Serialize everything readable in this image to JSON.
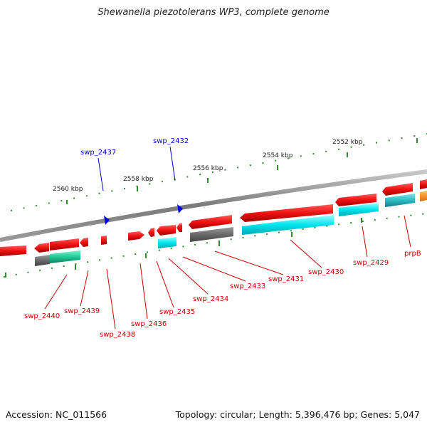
{
  "title": "Shewanella piezotolerans WP3, complete genome",
  "footer": {
    "accession": "Accession: NC_011566",
    "summary": "Topology: circular; Length: 5,396,476 bp; Genes: 5,047"
  },
  "colors": {
    "backbone": "#8a8a8a",
    "tick": "#2e8b2e",
    "forward_gene": "#ee1111",
    "reverse_gene": "#ee1111",
    "label_red": "#cc0000",
    "label_blue": "#0000cc",
    "cds_cyan": "#00e5ee",
    "cds_grey": "#707070",
    "cds_teal": "#20c997",
    "orange": "#ff8c00"
  },
  "scale_labels": [
    "2560 kbp",
    "2558 kbp",
    "2556 kbp",
    "2554 kbp",
    "2552 kbp"
  ],
  "gene_labels_top": [
    "swp_2437",
    "swp_2432"
  ],
  "gene_labels_bottom": [
    "swp_2440",
    "swp_2439",
    "swp_2438",
    "swp_2436",
    "swp_2435",
    "swp_2434",
    "swp_2433",
    "swp_2431",
    "swp_2430",
    "swp_2429",
    "prpB"
  ]
}
